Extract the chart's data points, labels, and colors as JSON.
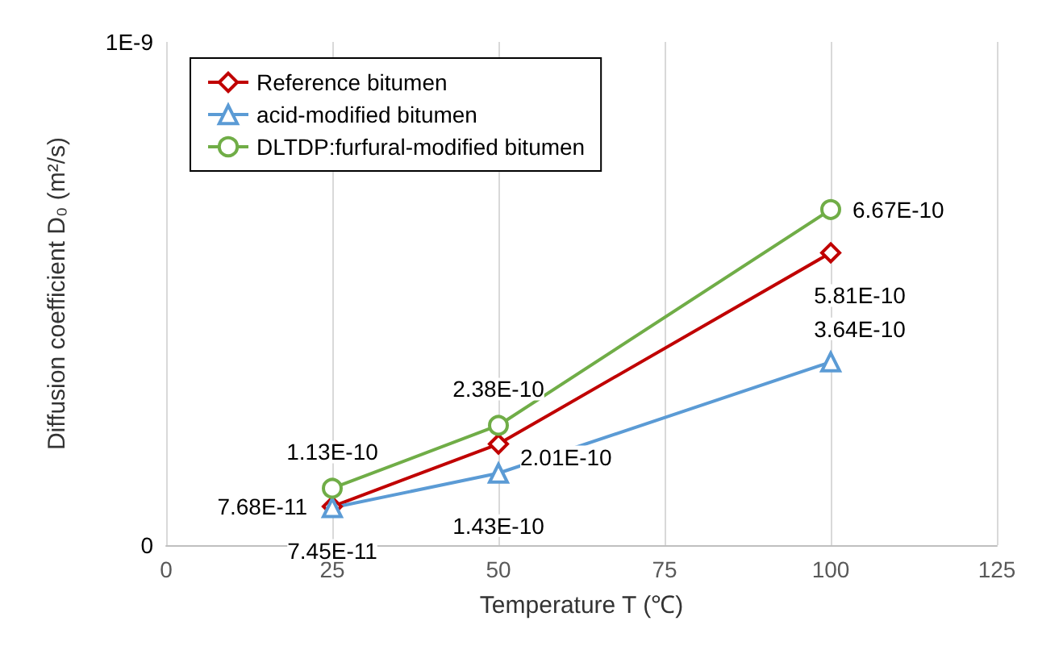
{
  "chart_data": {
    "type": "line",
    "xlabel": "Temperature T (℃)",
    "ylabel": "Diffusion coefficient D₀ (m²/s)",
    "x": [
      25,
      50,
      100
    ],
    "xlim": [
      0,
      125
    ],
    "xticks": [
      0,
      25,
      50,
      75,
      100,
      125
    ],
    "ylim": [
      0,
      1e-09
    ],
    "yticks": [
      0,
      {
        "value": 1e-09,
        "label": "1E-9"
      }
    ],
    "grid": "x",
    "legend": "top left",
    "line_style": "solid",
    "series": [
      {
        "name": "Reference bitumen",
        "color": "#c00000",
        "marker": "diamond",
        "values": [
          7.68e-11,
          2.01e-10,
          5.81e-10
        ],
        "value_labels": [
          "7.68E-11",
          "2.01E-10",
          "5.81E-10"
        ]
      },
      {
        "name": "acid-modified bitumen",
        "color": "#5b9bd5",
        "marker": "triangle",
        "values": [
          7.45e-11,
          1.43e-10,
          3.64e-10
        ],
        "value_labels": [
          "7.45E-11",
          "1.43E-10",
          "3.64E-10"
        ]
      },
      {
        "name": "DLTDP:furfural-modified bitumen",
        "color": "#70ad47",
        "marker": "circle",
        "values": [
          1.13e-10,
          2.38e-10,
          6.67e-10
        ],
        "value_labels": [
          "1.13E-10",
          "2.38E-10",
          "6.67E-10"
        ]
      }
    ]
  }
}
